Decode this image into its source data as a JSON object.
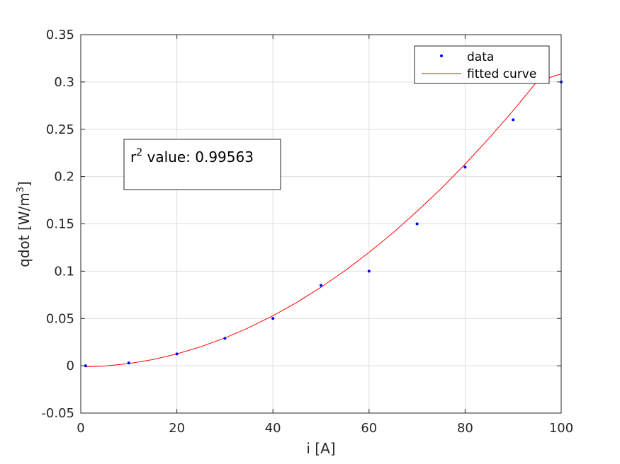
{
  "chart_data": {
    "type": "scatter",
    "xlabel": "i [A]",
    "ylabel": {
      "main": "qdot [W/m",
      "superscript": "3",
      "close": "]"
    },
    "xlim": [
      0,
      100
    ],
    "ylim": [
      -0.05,
      0.35
    ],
    "x_ticks": [
      0,
      20,
      40,
      60,
      80,
      100
    ],
    "x_tick_labels": [
      "0",
      "20",
      "40",
      "60",
      "80",
      "100"
    ],
    "y_ticks": [
      -0.05,
      0,
      0.05,
      0.1,
      0.15,
      0.2,
      0.25,
      0.3,
      0.35
    ],
    "y_tick_labels": [
      "-0.05",
      "0",
      "0.05",
      "0.1",
      "0.15",
      "0.2",
      "0.25",
      "0.3",
      "0.35"
    ],
    "grid": true,
    "legend_position": "top-right",
    "series": [
      {
        "name": "data",
        "kind": "points",
        "color": "#0000ff",
        "x": [
          1,
          10,
          20,
          30,
          40,
          50,
          60,
          70,
          80,
          90,
          100
        ],
        "y": [
          0.0,
          0.003,
          0.0125,
          0.029,
          0.05,
          0.085,
          0.1,
          0.15,
          0.21,
          0.26,
          0.3
        ]
      },
      {
        "name": "fitted curve",
        "kind": "line",
        "color": "#ff0000",
        "x": [
          1,
          5,
          10,
          15,
          20,
          25,
          30,
          35,
          40,
          45,
          50,
          55,
          60,
          65,
          70,
          75,
          80,
          85,
          90,
          95,
          100
        ],
        "y": [
          -0.0012,
          -0.0003,
          0.0023,
          0.0065,
          0.0125,
          0.0201,
          0.0294,
          0.0403,
          0.0529,
          0.0671,
          0.083,
          0.1006,
          0.1198,
          0.1406,
          0.1632,
          0.1873,
          0.2131,
          0.2406,
          0.2698,
          0.3006,
          0.3085
        ]
      }
    ],
    "annotation": {
      "prefix": "r",
      "superscript": "2",
      "text": " value: 0.99563"
    }
  }
}
